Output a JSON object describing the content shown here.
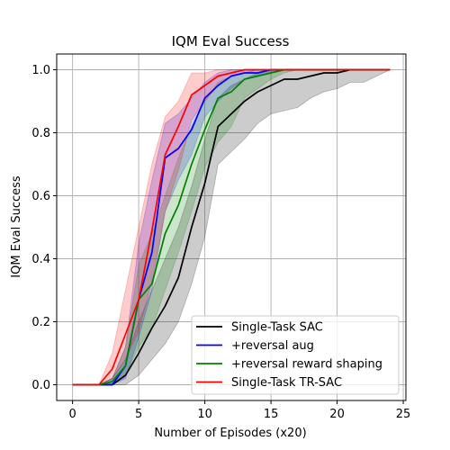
{
  "chart_data": {
    "type": "line",
    "title": "IQM Eval Success",
    "xlabel": "Number of Episodes (x20)",
    "ylabel": "IQM Eval Success",
    "xlim": [
      -1.2,
      25.2
    ],
    "ylim": [
      -0.05,
      1.05
    ],
    "xticks": [
      0,
      5,
      10,
      15,
      20,
      25
    ],
    "yticks": [
      0.0,
      0.2,
      0.4,
      0.6,
      0.8,
      1.0
    ],
    "xtick_labels": [
      "0",
      "5",
      "10",
      "15",
      "20",
      "25"
    ],
    "ytick_labels": [
      "0.0",
      "0.2",
      "0.4",
      "0.6",
      "0.8",
      "1.0"
    ],
    "grid": true,
    "legend_position": "lower-right",
    "x": [
      0,
      1,
      2,
      3,
      4,
      5,
      6,
      7,
      8,
      9,
      10,
      11,
      12,
      13,
      14,
      15,
      16,
      17,
      18,
      19,
      20,
      21,
      22,
      23,
      24
    ],
    "series": [
      {
        "name": "Single-Task SAC",
        "color": "#000000",
        "fill": "#000000",
        "values": [
          0.0,
          0.0,
          0.0,
          0.0,
          0.03,
          0.1,
          0.18,
          0.25,
          0.34,
          0.5,
          0.64,
          0.82,
          0.86,
          0.9,
          0.93,
          0.95,
          0.97,
          0.97,
          0.98,
          0.99,
          0.99,
          1.0,
          1.0,
          1.0,
          1.0
        ],
        "lower": [
          0.0,
          0.0,
          0.0,
          0.0,
          0.0,
          0.03,
          0.08,
          0.13,
          0.2,
          0.32,
          0.47,
          0.7,
          0.74,
          0.78,
          0.83,
          0.86,
          0.87,
          0.88,
          0.91,
          0.93,
          0.94,
          0.96,
          0.96,
          0.98,
          1.0
        ],
        "upper": [
          0.0,
          0.0,
          0.0,
          0.02,
          0.08,
          0.2,
          0.3,
          0.4,
          0.5,
          0.63,
          0.78,
          0.91,
          0.95,
          0.97,
          0.99,
          1.0,
          1.0,
          1.0,
          1.0,
          1.0,
          1.0,
          1.0,
          1.0,
          1.0,
          1.0
        ]
      },
      {
        "name": "+reversal aug",
        "color": "#0000ff",
        "fill": "#0000ff",
        "values": [
          0.0,
          0.0,
          0.0,
          0.0,
          0.06,
          0.27,
          0.42,
          0.72,
          0.75,
          0.81,
          0.91,
          0.95,
          0.98,
          0.99,
          0.99,
          1.0,
          1.0,
          1.0,
          1.0,
          1.0,
          1.0,
          1.0,
          1.0,
          1.0,
          1.0
        ],
        "lower": [
          0.0,
          0.0,
          0.0,
          0.0,
          0.02,
          0.15,
          0.3,
          0.55,
          0.65,
          0.73,
          0.85,
          0.9,
          0.94,
          0.97,
          0.98,
          0.99,
          1.0,
          1.0,
          1.0,
          1.0,
          1.0,
          1.0,
          1.0,
          1.0,
          1.0
        ],
        "upper": [
          0.0,
          0.0,
          0.0,
          0.02,
          0.12,
          0.45,
          0.65,
          0.83,
          0.86,
          0.91,
          0.96,
          0.99,
          1.0,
          1.0,
          1.0,
          1.0,
          1.0,
          1.0,
          1.0,
          1.0,
          1.0,
          1.0,
          1.0,
          1.0,
          1.0
        ]
      },
      {
        "name": "+reversal reward shaping",
        "color": "#008000",
        "fill": "#008000",
        "values": [
          0.0,
          0.0,
          0.0,
          0.01,
          0.06,
          0.27,
          0.32,
          0.48,
          0.57,
          0.7,
          0.81,
          0.91,
          0.93,
          0.97,
          0.98,
          0.99,
          1.0,
          1.0,
          1.0,
          1.0,
          1.0,
          1.0,
          1.0,
          1.0,
          1.0
        ],
        "lower": [
          0.0,
          0.0,
          0.0,
          0.0,
          0.03,
          0.12,
          0.18,
          0.3,
          0.42,
          0.55,
          0.69,
          0.77,
          0.82,
          0.91,
          0.94,
          0.97,
          0.99,
          1.0,
          1.0,
          1.0,
          1.0,
          1.0,
          1.0,
          1.0,
          1.0
        ],
        "upper": [
          0.0,
          0.0,
          0.0,
          0.02,
          0.12,
          0.38,
          0.48,
          0.6,
          0.72,
          0.82,
          0.9,
          0.96,
          0.98,
          0.99,
          1.0,
          1.0,
          1.0,
          1.0,
          1.0,
          1.0,
          1.0,
          1.0,
          1.0,
          1.0,
          1.0
        ]
      },
      {
        "name": "Single-Task TR-SAC",
        "color": "#ff0000",
        "fill": "#ff0000",
        "values": [
          0.0,
          0.0,
          0.0,
          0.05,
          0.16,
          0.27,
          0.49,
          0.73,
          0.82,
          0.92,
          0.95,
          0.98,
          0.99,
          1.0,
          1.0,
          1.0,
          1.0,
          1.0,
          1.0,
          1.0,
          1.0,
          1.0,
          1.0,
          1.0,
          1.0
        ],
        "lower": [
          0.0,
          0.0,
          0.0,
          0.02,
          0.08,
          0.17,
          0.33,
          0.55,
          0.68,
          0.84,
          0.9,
          0.95,
          0.98,
          0.99,
          1.0,
          1.0,
          1.0,
          1.0,
          1.0,
          1.0,
          1.0,
          1.0,
          1.0,
          1.0,
          1.0
        ],
        "upper": [
          0.0,
          0.0,
          0.0,
          0.1,
          0.3,
          0.5,
          0.7,
          0.85,
          0.9,
          0.99,
          0.99,
          1.0,
          1.0,
          1.0,
          1.0,
          1.0,
          1.0,
          1.0,
          1.0,
          1.0,
          1.0,
          1.0,
          1.0,
          1.0,
          1.0
        ]
      }
    ]
  }
}
